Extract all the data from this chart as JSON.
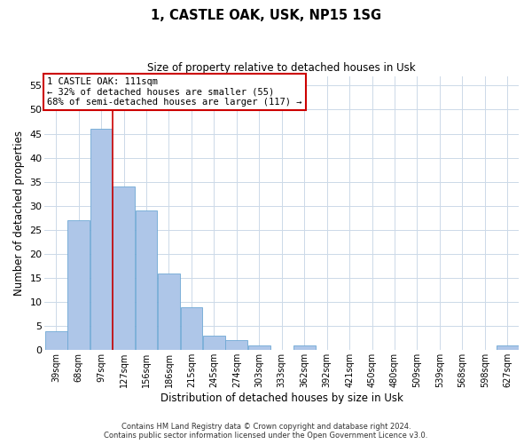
{
  "title": "1, CASTLE OAK, USK, NP15 1SG",
  "subtitle": "Size of property relative to detached houses in Usk",
  "xlabel": "Distribution of detached houses by size in Usk",
  "ylabel": "Number of detached properties",
  "bar_labels": [
    "39sqm",
    "68sqm",
    "97sqm",
    "127sqm",
    "156sqm",
    "186sqm",
    "215sqm",
    "245sqm",
    "274sqm",
    "303sqm",
    "333sqm",
    "362sqm",
    "392sqm",
    "421sqm",
    "450sqm",
    "480sqm",
    "509sqm",
    "539sqm",
    "568sqm",
    "598sqm",
    "627sqm"
  ],
  "bar_values": [
    4,
    27,
    46,
    34,
    29,
    16,
    9,
    3,
    2,
    1,
    0,
    1,
    0,
    0,
    0,
    0,
    0,
    0,
    0,
    0,
    1
  ],
  "bar_color": "#aec6e8",
  "bar_edge_color": "#6fa8d5",
  "vline_x_index": 2,
  "vline_color": "#cc0000",
  "ylim": [
    0,
    57
  ],
  "yticks": [
    0,
    5,
    10,
    15,
    20,
    25,
    30,
    35,
    40,
    45,
    50,
    55
  ],
  "annotation_line1": "1 CASTLE OAK: 111sqm",
  "annotation_line2": "← 32% of detached houses are smaller (55)",
  "annotation_line3": "68% of semi-detached houses are larger (117) →",
  "annotation_box_color": "#ffffff",
  "annotation_border_color": "#cc0000",
  "footer_line1": "Contains HM Land Registry data © Crown copyright and database right 2024.",
  "footer_line2": "Contains public sector information licensed under the Open Government Licence v3.0.",
  "background_color": "#ffffff",
  "grid_color": "#ccd9e8"
}
